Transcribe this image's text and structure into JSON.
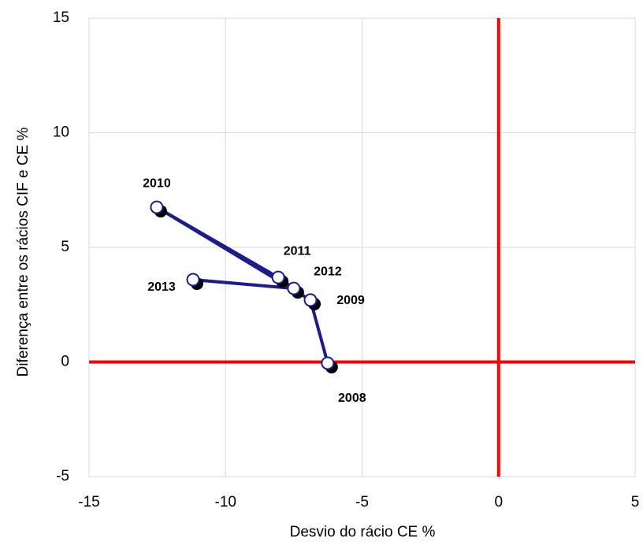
{
  "chart_data": {
    "type": "scatter",
    "connected": true,
    "x_label": "Desvio do rácio CE %",
    "y_label": "Diferença entre os rácios CIF e CE %",
    "labels": [
      "2008",
      "2009",
      "2010",
      "2011",
      "2012",
      "2013"
    ],
    "x": [
      -6.26,
      -6.89,
      -12.52,
      -8.07,
      -7.5,
      -11.19
    ],
    "values": [
      -0.05,
      2.7,
      6.75,
      3.69,
      3.21,
      3.59
    ],
    "color": "#1c1c8a",
    "xlim": [
      -15,
      5
    ],
    "xticks": [
      -15,
      -10,
      -5,
      0,
      5
    ],
    "ylim": [
      -5,
      15
    ],
    "yticks": [
      -5,
      0,
      5,
      10,
      15
    ],
    "grid": true,
    "reference_lines": {
      "x": 0,
      "y": 0,
      "color": "#ff0000"
    }
  }
}
